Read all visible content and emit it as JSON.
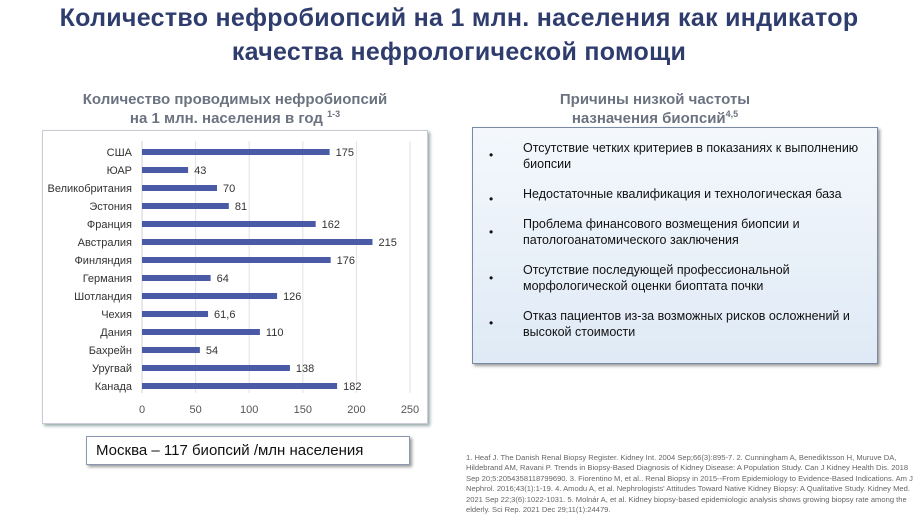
{
  "header": {
    "title_line1": "Количество нефробиопсий на 1 млн. населения как индикатор",
    "title_line2": "качества нефрологической помощи"
  },
  "chart_data": {
    "type": "bar",
    "orientation": "horizontal",
    "title_line1": "Количество проводимых нефробиопсий",
    "title_line2": "на 1 млн. населения в год",
    "title_sup": "1-3",
    "categories": [
      "США",
      "ЮАР",
      "Великобритания",
      "Эстония",
      "Франция",
      "Австралия",
      "Финляндия",
      "Германия",
      "Шотландия",
      "Чехия",
      "Дания",
      "Бахрейн",
      "Уругвай",
      "Канада"
    ],
    "values": [
      175,
      43,
      70,
      81,
      162,
      215,
      176,
      64,
      126,
      61.6,
      110,
      54,
      138,
      182
    ],
    "value_labels": [
      "175",
      "43",
      "70",
      "81",
      "162",
      "215",
      "176",
      "64",
      "126",
      "61,6",
      "110",
      "54",
      "138",
      "182"
    ],
    "xlim": [
      0,
      250
    ],
    "xticks": [
      "0",
      "50",
      "100",
      "150",
      "200",
      "250"
    ],
    "grid": true,
    "bar_color": "#4a5aa6"
  },
  "reasons": {
    "title_line1": "Причины низкой частоты",
    "title_line2": "назначения биопсий",
    "title_sup": "4,5",
    "bullet": "•",
    "items": [
      "Отсутствие четких критериев в показаниях к выполнению биопсии",
      "Недостаточные квалификация и технологическая база",
      "Проблема финансового возмещения биопсии и патологоанатомического заключения",
      "Отсутствие последующей профессиональной морфологической оценки биоптата почки",
      "Отказ пациентов из-за возможных рисков осложнений и высокой стоимости"
    ]
  },
  "moscow": "Москва – 117 биопсий /млн населения",
  "references": "1. Heaf J. The Danish Renal Biopsy Register. Kidney Int. 2004 Sep;66(3):895-7. 2. Cunningham A, Benediktsson H, Muruve DA, Hildebrand AM, Ravani P. Trends in Biopsy-Based Diagnosis of Kidney Disease: A Population Study. Can J Kidney Health Dis. 2018 Sep 20;5:2054358118799690. 3. Fiorentino M, et al.. Renal Biopsy in 2015--From Epidemiology to Evidence-Based Indications. Am J Nephrol. 2016;43(1):1-19. 4. Amodu A, et al. Nephrologists' Attitudes Toward Native Kidney Biopsy: A Qualitative Study. Kidney Med. 2021 Sep 22;3(6):1022-1031. 5. Molnár A, et al. Kidney biopsy-based epidemiologic analysis shows growing biopsy rate among the elderly. Sci Rep. 2021 Dec 29;11(1):24479."
}
